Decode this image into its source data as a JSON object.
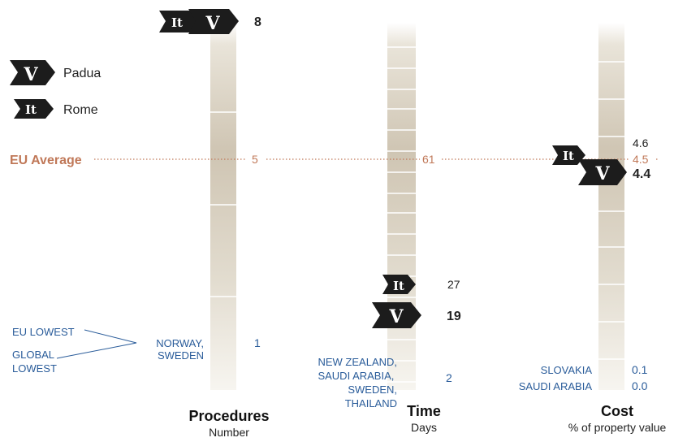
{
  "colors": {
    "eu_average": "#c07858",
    "lowest": "#2a5c9a",
    "marker": "#1c1c1c",
    "value_text": "#222222"
  },
  "legend": [
    {
      "code": "V",
      "label": "Padua",
      "icon": "padua-marker-icon"
    },
    {
      "code": "It",
      "label": "Rome",
      "icon": "rome-marker-icon"
    }
  ],
  "eu_average_label": "EU Average",
  "lowest_labels": {
    "eu": "EU LOWEST",
    "global": "GLOBAL LOWEST"
  },
  "chart_data": {
    "type": "scale-columns",
    "markers": {
      "V": "Padua",
      "It": "Rome"
    },
    "columns": [
      {
        "id": "procedures",
        "title": "Procedures",
        "unit": "Number",
        "range": [
          1,
          8
        ],
        "eu_average": "5",
        "lowest": {
          "countries": [
            "NORWAY,",
            "SWEDEN"
          ],
          "values": [
            "1"
          ]
        },
        "points": [
          {
            "marker": "It",
            "value": 8,
            "label": ""
          },
          {
            "marker": "V",
            "value": 8,
            "label": "8"
          }
        ]
      },
      {
        "id": "time",
        "title": "Time",
        "unit": "Days",
        "range": [
          2,
          61
        ],
        "eu_average": "61",
        "lowest": {
          "countries": [
            "NEW ZEALAND,",
            "SAUDI ARABIA,",
            "SWEDEN,",
            "THAILAND"
          ],
          "values": [
            "2"
          ]
        },
        "points": [
          {
            "marker": "It",
            "value": 27,
            "label": "27"
          },
          {
            "marker": "V",
            "value": 19,
            "label": "19"
          }
        ]
      },
      {
        "id": "cost",
        "title": "Cost",
        "unit": "% of property value",
        "range": [
          0.0,
          4.6
        ],
        "eu_average": "4.5",
        "top_value": "4.6",
        "lowest": {
          "countries": [
            "SLOVAKIA",
            "SAUDI ARABIA"
          ],
          "values": [
            "0.1",
            "0.0"
          ]
        },
        "points": [
          {
            "marker": "It",
            "value": 4.6,
            "label": ""
          },
          {
            "marker": "V",
            "value": 4.4,
            "label": "4.4"
          }
        ]
      }
    ]
  }
}
